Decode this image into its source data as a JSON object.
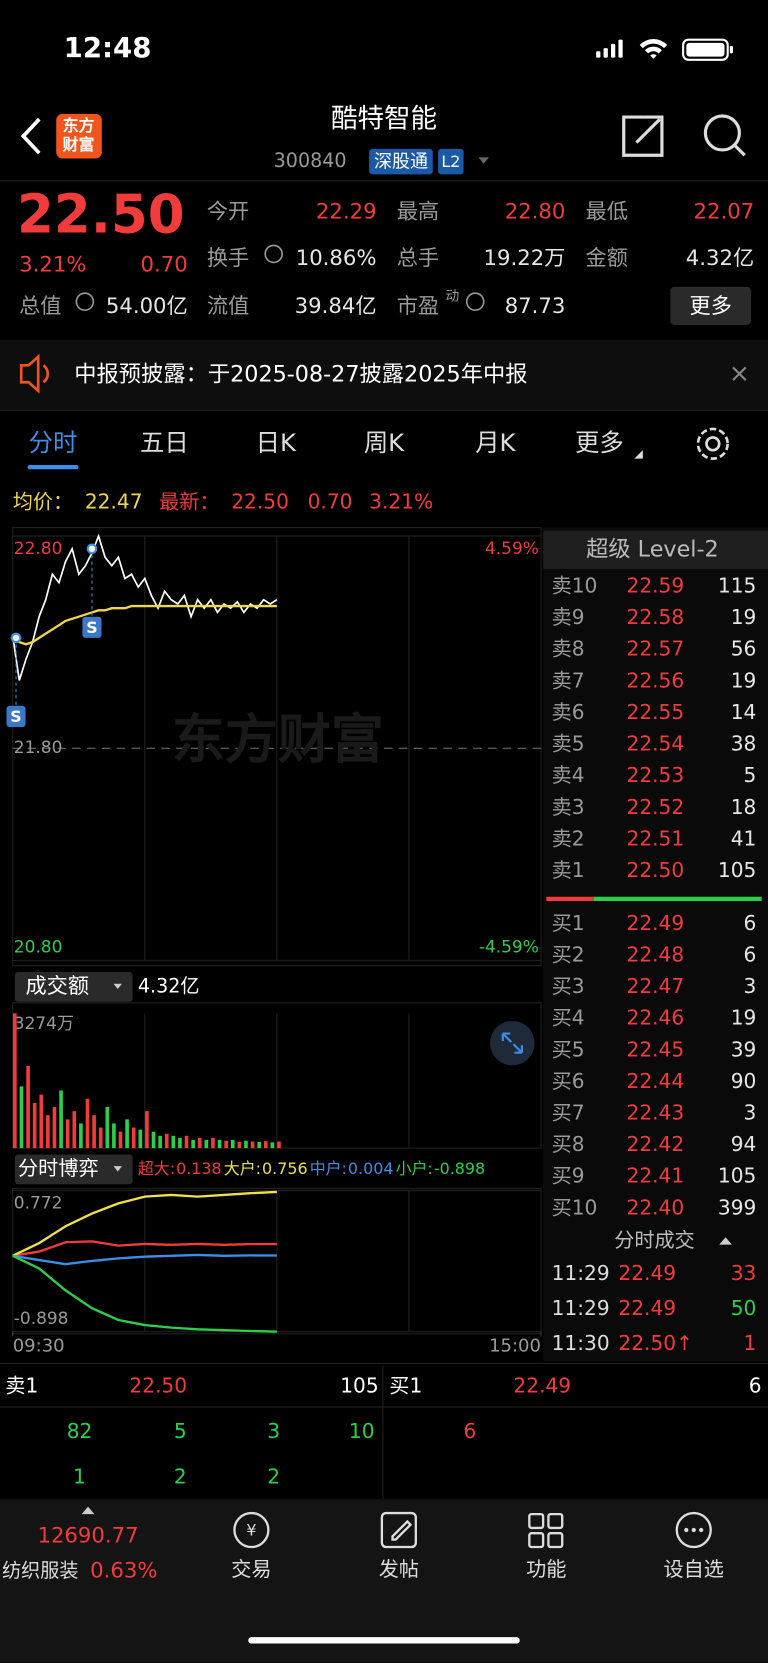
{
  "status_bar": {
    "time": "12:48"
  },
  "header": {
    "logo": [
      "东方",
      "财富"
    ],
    "title": "酷特智能",
    "code": "300840",
    "tags": [
      "深股通",
      "L2"
    ]
  },
  "quote": {
    "price": "22.50",
    "change_pct": "3.21%",
    "change": "0.70",
    "fields": [
      {
        "label": "今开",
        "value": "22.29"
      },
      {
        "label": "最高",
        "value": "22.80"
      },
      {
        "label": "最低",
        "value": "22.07"
      },
      {
        "label": "换手",
        "value": "10.86%"
      },
      {
        "label": "总手",
        "value": "19.22万"
      },
      {
        "label": "金额",
        "value": "4.32亿"
      },
      {
        "label": "总值",
        "value": "54.00亿"
      },
      {
        "label": "流值",
        "value": "39.84亿"
      },
      {
        "label": "市盈",
        "sup": "动",
        "value": "87.73"
      }
    ],
    "more": "更多"
  },
  "notice": {
    "text": "中报预披露：于2025-08-27披露2025年中报"
  },
  "tabs": [
    "分时",
    "五日",
    "日K",
    "周K",
    "月K",
    "更多"
  ],
  "chart_data": [
    {
      "type": "line",
      "average": {
        "label": "均价：",
        "value": "22.47"
      },
      "latest": {
        "label": "最新：",
        "price": "22.50",
        "change": "0.70",
        "change_pct": "3.21%"
      },
      "x": [
        0,
        3,
        6,
        9,
        12,
        15,
        18,
        21,
        24,
        27,
        30,
        33,
        36,
        39,
        42,
        45,
        48,
        51,
        54,
        57,
        60,
        63,
        66,
        69,
        72,
        75,
        78,
        81,
        84,
        87,
        90,
        93,
        96,
        99,
        102,
        105,
        108,
        111,
        114,
        117,
        120
      ],
      "xlim": [
        0,
        240
      ],
      "ylim": [
        20.8,
        22.8
      ],
      "yticks": [
        {
          "value": 20.8,
          "label": "20.80"
        },
        {
          "value": 21.8,
          "label": "21.80"
        },
        {
          "value": 22.8,
          "label": "22.80"
        }
      ],
      "y2lim": [
        -4.59,
        4.59
      ],
      "y2ticks": [
        {
          "value": -4.59,
          "label": "-4.59%"
        },
        {
          "value": 4.59,
          "label": "4.59%"
        }
      ],
      "series": [
        {
          "color": "#ffffff",
          "values": [
            22.33,
            22.12,
            22.22,
            22.3,
            22.42,
            22.5,
            22.62,
            22.58,
            22.68,
            22.74,
            22.62,
            22.66,
            22.72,
            22.8,
            22.7,
            22.66,
            22.7,
            22.6,
            22.62,
            22.56,
            22.6,
            22.52,
            22.46,
            22.54,
            22.5,
            22.48,
            22.52,
            22.42,
            22.5,
            22.46,
            22.5,
            22.44,
            22.48,
            22.46,
            22.49,
            22.44,
            22.48,
            22.46,
            22.5,
            22.48,
            22.5
          ]
        },
        {
          "color": "#f0d64a",
          "values": [
            22.33,
            22.3,
            22.29,
            22.3,
            22.32,
            22.34,
            22.36,
            22.38,
            22.4,
            22.41,
            22.42,
            22.43,
            22.44,
            22.45,
            22.45,
            22.46,
            22.46,
            22.46,
            22.47,
            22.47,
            22.47,
            22.47,
            22.47,
            22.47,
            22.47,
            22.47,
            22.47,
            22.47,
            22.47,
            22.47,
            22.47,
            22.47,
            22.47,
            22.47,
            22.47,
            22.47,
            22.47,
            22.47,
            22.47,
            22.47,
            22.47
          ]
        }
      ],
      "markers": [
        {
          "label": "S",
          "x": 1.5,
          "y": 22.32
        },
        {
          "label": "S",
          "x": 36,
          "y": 22.74
        }
      ],
      "watermark": "东方财富"
    },
    {
      "type": "bar",
      "title": "成交额",
      "total": "4.32亿",
      "x": [
        0,
        3,
        6,
        9,
        12,
        15,
        18,
        21,
        24,
        27,
        30,
        33,
        36,
        39,
        42,
        45,
        48,
        51,
        54,
        57,
        60,
        63,
        66,
        69,
        72,
        75,
        78,
        81,
        84,
        87,
        90,
        93,
        96,
        99,
        102,
        105,
        108,
        111,
        114,
        117,
        120
      ],
      "xlim": [
        0,
        240
      ],
      "ylim": [
        0,
        3274
      ],
      "yticks": [
        {
          "value": 3274,
          "label": "3274万"
        }
      ],
      "up_color": "#f23b3b",
      "down_color": "#2bd04a",
      "values": [
        3274,
        1500,
        2000,
        1100,
        1300,
        800,
        1000,
        1400,
        700,
        900,
        600,
        1200,
        800,
        500,
        1000,
        600,
        400,
        700,
        500,
        450,
        900,
        400,
        300,
        350,
        300,
        250,
        300,
        200,
        250,
        200,
        250,
        200,
        180,
        200,
        150,
        180,
        160,
        150,
        170,
        140,
        160
      ]
    },
    {
      "type": "line",
      "title": "分时博弈",
      "x": [
        0,
        12,
        24,
        36,
        48,
        60,
        72,
        84,
        96,
        108,
        120
      ],
      "xlim": [
        0,
        240
      ],
      "xticks": [
        {
          "value": 0,
          "label": "09:30"
        },
        {
          "value": 240,
          "label": "15:00"
        }
      ],
      "ylim": [
        -0.898,
        0.772
      ],
      "yticks": [
        -0.898,
        0.772
      ],
      "series": [
        {
          "name": "超大:",
          "current": "0.138",
          "color": "#f23b3b",
          "values": [
            0,
            0.05,
            0.16,
            0.17,
            0.12,
            0.14,
            0.13,
            0.14,
            0.13,
            0.138,
            0.138
          ]
        },
        {
          "name": "大户:",
          "current": "0.756",
          "color": "#f0e04a",
          "values": [
            0,
            0.15,
            0.35,
            0.5,
            0.62,
            0.7,
            0.72,
            0.7,
            0.72,
            0.74,
            0.756
          ]
        },
        {
          "name": "中户:",
          "current": "0.004",
          "color": "#3b8fe8",
          "values": [
            0,
            -0.05,
            -0.1,
            -0.06,
            -0.03,
            -0.01,
            0,
            0.01,
            0,
            0.005,
            0.004
          ]
        },
        {
          "name": "小户:",
          "current": "-0.898",
          "color": "#2bd04a",
          "values": [
            0,
            -0.15,
            -0.41,
            -0.62,
            -0.76,
            -0.82,
            -0.85,
            -0.87,
            -0.88,
            -0.89,
            -0.898
          ]
        }
      ]
    }
  ],
  "order_book": {
    "title": "超级 Level-2",
    "asks": [
      {
        "label": "卖10",
        "price": "22.59",
        "volume": "115"
      },
      {
        "label": "卖9",
        "price": "22.58",
        "volume": "19"
      },
      {
        "label": "卖8",
        "price": "22.57",
        "volume": "56"
      },
      {
        "label": "卖7",
        "price": "22.56",
        "volume": "19"
      },
      {
        "label": "卖6",
        "price": "22.55",
        "volume": "14"
      },
      {
        "label": "卖5",
        "price": "22.54",
        "volume": "38"
      },
      {
        "label": "卖4",
        "price": "22.53",
        "volume": "5"
      },
      {
        "label": "卖3",
        "price": "22.52",
        "volume": "18"
      },
      {
        "label": "卖2",
        "price": "22.51",
        "volume": "41"
      },
      {
        "label": "卖1",
        "price": "22.50",
        "volume": "105"
      }
    ],
    "bids": [
      {
        "label": "买1",
        "price": "22.49",
        "volume": "6"
      },
      {
        "label": "买2",
        "price": "22.48",
        "volume": "6"
      },
      {
        "label": "买3",
        "price": "22.47",
        "volume": "3"
      },
      {
        "label": "买4",
        "price": "22.46",
        "volume": "19"
      },
      {
        "label": "买5",
        "price": "22.45",
        "volume": "39"
      },
      {
        "label": "买6",
        "price": "22.44",
        "volume": "90"
      },
      {
        "label": "买7",
        "price": "22.43",
        "volume": "3"
      },
      {
        "label": "买8",
        "price": "22.42",
        "volume": "94"
      },
      {
        "label": "买9",
        "price": "22.41",
        "volume": "105"
      },
      {
        "label": "买10",
        "price": "22.40",
        "volume": "399"
      }
    ]
  },
  "trades": {
    "title": "分时成交",
    "rows": [
      {
        "time": "11:29",
        "price": "22.49",
        "volume": "33"
      },
      {
        "time": "11:29",
        "price": "22.49",
        "volume": "50"
      },
      {
        "time": "11:30",
        "price": "22.50",
        "arrow": "↑",
        "volume": "1"
      }
    ]
  },
  "queue": {
    "ask": {
      "label": "卖1",
      "price": "22.50",
      "volume": "105",
      "orders": [
        [
          "82",
          "5",
          "3",
          "10"
        ],
        [
          "1",
          "2",
          "2"
        ]
      ]
    },
    "bid": {
      "label": "买1",
      "price": "22.49",
      "volume": "6",
      "orders": [
        [
          "6"
        ]
      ]
    }
  },
  "footer": {
    "index_value": "12690.77",
    "index_name": "纺织服装",
    "index_change": "0.63%",
    "nav": [
      "交易",
      "发帖",
      "功能",
      "设自选"
    ]
  }
}
